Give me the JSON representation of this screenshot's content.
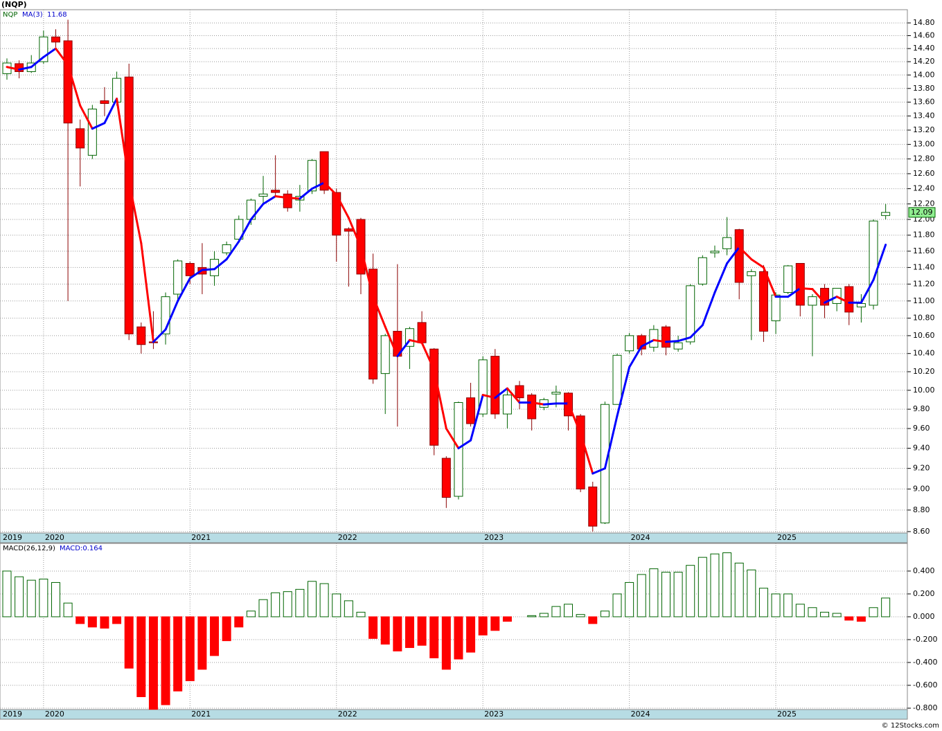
{
  "chart_data": [
    {
      "type": "candlestick",
      "title": "(NQP)",
      "log_scale": true,
      "grid": true,
      "categories": [
        "2019",
        null,
        null,
        "2020",
        null,
        null,
        null,
        null,
        null,
        null,
        null,
        null,
        null,
        null,
        null,
        "2021",
        null,
        null,
        null,
        null,
        null,
        null,
        null,
        null,
        null,
        null,
        null,
        "2022",
        null,
        null,
        null,
        null,
        null,
        null,
        null,
        null,
        null,
        null,
        null,
        "2023",
        null,
        null,
        null,
        null,
        null,
        null,
        null,
        null,
        null,
        null,
        null,
        "2024",
        null,
        null,
        null,
        null,
        null,
        null,
        null,
        null,
        null,
        null,
        null,
        "2025",
        null,
        null,
        null,
        null,
        null,
        null,
        null,
        null,
        null
      ],
      "series": [
        {
          "name": "NQP",
          "up_color": "#ffffff",
          "up_border": "#006400",
          "down_color": "#ff0000",
          "down_border": "#8b0000",
          "open": [
            14.02,
            14.17,
            14.05,
            14.2,
            14.58,
            14.52,
            13.22,
            12.85,
            13.62,
            13.6,
            13.97,
            10.7,
            10.53,
            10.62,
            11.08,
            11.45,
            11.4,
            11.3,
            11.58,
            11.75,
            12.0,
            12.3,
            12.38,
            12.33,
            12.25,
            12.37,
            12.9,
            12.35,
            11.88,
            12.0,
            11.38,
            10.18,
            10.65,
            10.48,
            10.75,
            10.45,
            9.3,
            8.93,
            9.92,
            9.75,
            10.37,
            9.75,
            10.05,
            9.95,
            9.82,
            9.96,
            9.97,
            9.73,
            9.02,
            8.68,
            9.85,
            10.43,
            10.6,
            10.47,
            10.7,
            10.45,
            10.53,
            11.2,
            11.58,
            11.63,
            11.87,
            11.3,
            11.35,
            10.77,
            11.1,
            11.45,
            10.95,
            11.15,
            10.97,
            11.17,
            10.93,
            10.95,
            12.05
          ],
          "high": [
            14.25,
            14.22,
            14.3,
            14.68,
            14.7,
            14.85,
            13.35,
            13.56,
            13.82,
            14.05,
            14.17,
            10.75,
            10.88,
            11.1,
            11.5,
            11.47,
            11.7,
            11.6,
            11.72,
            12.05,
            12.27,
            12.57,
            12.85,
            12.38,
            12.45,
            12.8,
            12.9,
            12.4,
            11.9,
            12.02,
            11.57,
            10.62,
            11.44,
            10.7,
            10.88,
            10.46,
            9.32,
            9.88,
            10.08,
            10.37,
            10.45,
            10.02,
            10.1,
            9.97,
            9.92,
            10.05,
            9.98,
            9.75,
            9.07,
            9.88,
            10.4,
            10.63,
            10.62,
            10.72,
            10.72,
            10.6,
            11.2,
            11.55,
            11.67,
            12.03,
            11.88,
            11.38,
            11.43,
            11.1,
            11.43,
            11.45,
            11.08,
            11.2,
            11.15,
            11.2,
            11.08,
            12.0,
            12.2
          ],
          "low": [
            13.93,
            13.95,
            14.03,
            14.17,
            14.42,
            11.0,
            12.43,
            12.8,
            13.4,
            13.55,
            10.55,
            10.4,
            10.45,
            10.5,
            11.0,
            11.2,
            11.08,
            11.18,
            11.55,
            11.7,
            11.93,
            12.2,
            12.3,
            12.1,
            12.1,
            12.33,
            12.33,
            11.47,
            11.17,
            11.08,
            10.07,
            9.75,
            9.62,
            10.23,
            10.5,
            9.33,
            8.82,
            8.9,
            9.62,
            9.72,
            9.7,
            9.6,
            9.8,
            9.58,
            9.79,
            9.82,
            9.58,
            8.97,
            8.6,
            8.67,
            9.85,
            10.4,
            10.38,
            10.42,
            10.38,
            10.42,
            10.5,
            11.18,
            11.52,
            11.55,
            11.02,
            10.55,
            10.53,
            10.62,
            11.08,
            10.82,
            10.37,
            10.8,
            10.88,
            10.72,
            10.75,
            10.9,
            12.0
          ],
          "close": [
            14.18,
            14.05,
            14.18,
            14.58,
            14.5,
            13.3,
            12.95,
            13.5,
            13.58,
            13.95,
            10.62,
            10.5,
            10.52,
            11.05,
            11.48,
            11.3,
            11.32,
            11.5,
            11.68,
            12.0,
            12.25,
            12.33,
            12.35,
            12.15,
            12.3,
            12.78,
            12.38,
            11.8,
            11.85,
            11.32,
            10.12,
            10.6,
            10.37,
            10.68,
            10.52,
            9.43,
            8.92,
            9.87,
            9.65,
            10.33,
            9.75,
            9.95,
            9.92,
            9.7,
            9.9,
            9.98,
            9.73,
            9.0,
            8.65,
            9.85,
            10.38,
            10.6,
            10.45,
            10.67,
            10.47,
            10.52,
            11.18,
            11.52,
            11.6,
            11.77,
            11.22,
            11.35,
            10.65,
            11.07,
            11.42,
            10.95,
            11.05,
            10.95,
            11.15,
            10.87,
            10.97,
            11.98,
            12.09
          ]
        }
      ],
      "ma": {
        "name": "MA(3)",
        "up_color": "#0000ff",
        "down_color": "#ff0000",
        "values": [
          14.12,
          14.08,
          14.12,
          14.27,
          14.4,
          14.15,
          13.55,
          13.22,
          13.3,
          13.65,
          12.5,
          11.7,
          10.53,
          10.67,
          11.0,
          11.27,
          11.37,
          11.38,
          11.5,
          11.72,
          12.0,
          12.2,
          12.3,
          12.28,
          12.27,
          12.4,
          12.48,
          12.32,
          12.02,
          11.65,
          11.05,
          10.7,
          10.37,
          10.55,
          10.52,
          10.22,
          9.6,
          9.4,
          9.48,
          9.95,
          9.92,
          10.02,
          9.87,
          9.87,
          9.85,
          9.86,
          9.86,
          9.55,
          9.15,
          9.2,
          9.73,
          10.25,
          10.48,
          10.55,
          10.53,
          10.54,
          10.58,
          10.72,
          11.1,
          11.45,
          11.65,
          11.5,
          11.4,
          11.05,
          11.05,
          11.15,
          11.14,
          10.98,
          11.05,
          10.98,
          10.98,
          11.25,
          11.68
        ]
      },
      "ylim": [
        8.587,
        15.01
      ],
      "yticks": [
        {
          "value": 14.8,
          "label": "14.80"
        },
        {
          "value": 14.6,
          "label": "14.60"
        },
        {
          "value": 14.4,
          "label": "14.40"
        },
        {
          "value": 14.2,
          "label": "14.20"
        },
        {
          "value": 14.0,
          "label": "14.00"
        },
        {
          "value": 13.8,
          "label": "13.80"
        },
        {
          "value": 13.6,
          "label": "13.60"
        },
        {
          "value": 13.4,
          "label": "13.40"
        },
        {
          "value": 13.2,
          "label": "13.20"
        },
        {
          "value": 13.0,
          "label": "13.00"
        },
        {
          "value": 12.8,
          "label": "12.80"
        },
        {
          "value": 12.6,
          "label": "12.60"
        },
        {
          "value": 12.4,
          "label": "12.40"
        },
        {
          "value": 12.2,
          "label": "12.20"
        },
        {
          "value": 12.0,
          "label": "12.00"
        },
        {
          "value": 11.8,
          "label": "11.80"
        },
        {
          "value": 11.6,
          "label": "11.60"
        },
        {
          "value": 11.4,
          "label": "11.40"
        },
        {
          "value": 11.2,
          "label": "11.20"
        },
        {
          "value": 11.0,
          "label": "11.00"
        },
        {
          "value": 10.8,
          "label": "10.80"
        },
        {
          "value": 10.6,
          "label": "10.60"
        },
        {
          "value": 10.4,
          "label": "10.40"
        },
        {
          "value": 10.2,
          "label": "10.20"
        },
        {
          "value": 10.0,
          "label": "10.00"
        },
        {
          "value": 9.8,
          "label": "9.80"
        },
        {
          "value": 9.6,
          "label": "9.60"
        },
        {
          "value": 9.4,
          "label": "9.40"
        },
        {
          "value": 9.2,
          "label": "9.20"
        },
        {
          "value": 9.0,
          "label": "9.00"
        },
        {
          "value": 8.8,
          "label": "8.80"
        },
        {
          "value": 8.6,
          "label": "8.60"
        }
      ]
    },
    {
      "type": "bar",
      "series_name": "MACD(26,12,9)",
      "macd_label": "MACD:0.164",
      "grid": true,
      "up_color": "#006400",
      "down_color": "#ff0000",
      "categories": [
        "2019",
        null,
        null,
        "2020",
        null,
        null,
        null,
        null,
        null,
        null,
        null,
        null,
        null,
        null,
        null,
        "2021",
        null,
        null,
        null,
        null,
        null,
        null,
        null,
        null,
        null,
        null,
        null,
        "2022",
        null,
        null,
        null,
        null,
        null,
        null,
        null,
        null,
        null,
        null,
        null,
        "2023",
        null,
        null,
        null,
        null,
        null,
        null,
        null,
        null,
        null,
        null,
        null,
        "2024",
        null,
        null,
        null,
        null,
        null,
        null,
        null,
        null,
        null,
        null,
        null,
        "2025",
        null,
        null,
        null,
        null,
        null,
        null,
        null,
        null,
        null
      ],
      "values": [
        0.4,
        0.35,
        0.32,
        0.33,
        0.3,
        0.12,
        -0.06,
        -0.09,
        -0.1,
        -0.06,
        -0.45,
        -0.7,
        -0.81,
        -0.77,
        -0.65,
        -0.56,
        -0.46,
        -0.34,
        -0.21,
        -0.09,
        0.05,
        0.15,
        0.21,
        0.22,
        0.24,
        0.31,
        0.29,
        0.2,
        0.14,
        0.04,
        -0.19,
        -0.24,
        -0.3,
        -0.27,
        -0.25,
        -0.36,
        -0.46,
        -0.37,
        -0.31,
        -0.16,
        -0.12,
        -0.04,
        0.0,
        0.01,
        0.03,
        0.09,
        0.11,
        0.02,
        -0.06,
        0.05,
        0.2,
        0.3,
        0.37,
        0.42,
        0.39,
        0.39,
        0.45,
        0.52,
        0.55,
        0.56,
        0.47,
        0.41,
        0.25,
        0.2,
        0.2,
        0.11,
        0.08,
        0.04,
        0.03,
        -0.03,
        -0.04,
        0.08,
        0.164
      ],
      "ylim": [
        -0.812,
        0.642
      ],
      "yticks": [
        {
          "value": 0.4,
          "label": "0.400"
        },
        {
          "value": 0.2,
          "label": "0.200"
        },
        {
          "value": 0,
          "label": "0.000"
        },
        {
          "value": -0.2,
          "label": "-0.200"
        },
        {
          "value": -0.4,
          "label": "-0.400"
        },
        {
          "value": -0.6,
          "label": "-0.600"
        },
        {
          "value": -0.8,
          "label": "-0.800"
        }
      ]
    }
  ],
  "footer": "© 12Stocks.com"
}
